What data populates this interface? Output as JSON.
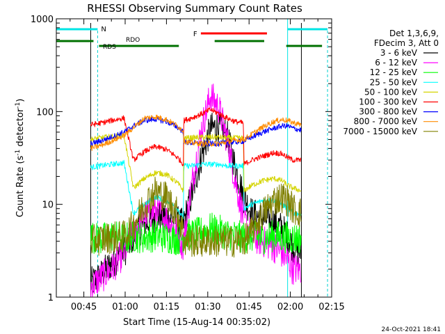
{
  "chart_data": {
    "type": "line",
    "title": "RHESSI Observing Summary Count Rates",
    "xlabel": "Start Time (15-Aug-14 00:35:02)",
    "ylabel": "Count Rate (s^-1 detector^-1)",
    "ylabel_parts": [
      "Count Rate (s",
      "-1",
      " detector",
      "-1",
      ")"
    ],
    "footer": "24-Oct-2021 18:41",
    "y_scale": "log",
    "ylim": [
      1,
      1000
    ],
    "xlim_minutes": [
      35.0,
      135.0
    ],
    "x_ticks": [
      {
        "minute": 45,
        "label": "00:45"
      },
      {
        "minute": 60,
        "label": "01:00"
      },
      {
        "minute": 75,
        "label": "01:15"
      },
      {
        "minute": 90,
        "label": "01:30"
      },
      {
        "minute": 105,
        "label": "01:45"
      },
      {
        "minute": 120,
        "label": "02:00"
      },
      {
        "minute": 135,
        "label": "02:15"
      }
    ],
    "y_ticks": [
      {
        "value": 1,
        "label": "1"
      },
      {
        "value": 10,
        "label": "10"
      },
      {
        "value": 100,
        "label": "100"
      },
      {
        "value": 1000,
        "label": "1000"
      }
    ],
    "legend_header": [
      "Det 1,3,6,9,",
      "FDecim 3, Att 0"
    ],
    "legend_position": "right",
    "data_gaps": [
      [
        35.0,
        47.5
      ],
      [
        124.0,
        135.0
      ]
    ],
    "time_points": [
      47.5,
      51,
      55,
      59.5,
      59.6,
      63,
      67,
      71,
      75,
      79,
      81.2,
      81.3,
      84,
      88,
      91,
      94,
      97,
      100,
      103,
      103.1,
      106,
      110,
      114,
      117,
      119,
      121,
      123.9
    ],
    "series": [
      {
        "name": "3 - 6 keV",
        "color": "#000000",
        "values": [
          1.4,
          1.7,
          2.3,
          3.1,
          3.1,
          4.5,
          6.0,
          7.5,
          7.5,
          6.5,
          6.0,
          6.5,
          12,
          35,
          65,
          70,
          55,
          25,
          12,
          12,
          8.0,
          7.0,
          6.5,
          5.5,
          4.5,
          3.5,
          3.0
        ]
      },
      {
        "name": "6 - 12 keV",
        "color": "#ff00ff",
        "values": [
          1.3,
          1.6,
          2.0,
          3.0,
          3.0,
          5.0,
          7.5,
          8.5,
          7.0,
          5.0,
          3.5,
          4.0,
          15,
          70,
          150,
          110,
          50,
          18,
          7.0,
          7.0,
          4.5,
          4.0,
          3.5,
          3.0,
          2.5,
          2.0,
          2.0
        ]
      },
      {
        "name": "12 - 25 keV",
        "color": "#00ff00",
        "values": [
          4.5,
          4.2,
          4.6,
          4.3,
          4.3,
          4.5,
          4.4,
          4.6,
          4.4,
          4.2,
          4.5,
          4.6,
          4.7,
          5.0,
          5.5,
          5.2,
          4.8,
          4.6,
          4.4,
          4.4,
          4.5,
          4.3,
          4.6,
          4.4,
          4.5,
          4.3,
          4.4
        ]
      },
      {
        "name": "25 - 50 keV",
        "color": "#00ffff",
        "values": [
          25,
          26,
          27,
          28,
          28,
          8.0,
          10,
          12,
          11,
          9.0,
          7.0,
          26,
          26,
          27,
          27,
          27,
          26,
          26,
          26,
          9.0,
          10,
          11,
          11,
          10,
          9.0,
          8.0,
          8.0
        ]
      },
      {
        "name": "50 - 100 keV",
        "color": "#d4d400",
        "values": [
          50,
          52,
          54,
          55,
          55,
          15,
          19,
          22,
          21,
          17,
          14,
          52,
          52,
          53,
          53,
          53,
          52,
          52,
          52,
          14,
          16,
          18,
          19,
          18,
          16,
          15,
          14
        ]
      },
      {
        "name": "100 - 300 keV",
        "color": "#ff0000",
        "values": [
          72,
          75,
          80,
          85,
          85,
          30,
          37,
          42,
          39,
          32,
          27,
          80,
          85,
          95,
          105,
          95,
          85,
          78,
          75,
          27,
          30,
          33,
          36,
          35,
          32,
          30,
          30
        ]
      },
      {
        "name": "300 - 800 keV",
        "color": "#0000ff",
        "values": [
          45,
          48,
          53,
          60,
          60,
          70,
          80,
          83,
          78,
          68,
          60,
          47,
          46,
          45,
          45,
          45,
          46,
          47,
          48,
          48,
          53,
          60,
          66,
          70,
          70,
          66,
          63
        ]
      },
      {
        "name": "800 - 7000 keV",
        "color": "#ff8c00",
        "values": [
          40,
          43,
          48,
          55,
          55,
          67,
          85,
          88,
          82,
          70,
          62,
          48,
          46,
          45,
          45,
          45,
          47,
          49,
          50,
          50,
          57,
          68,
          78,
          82,
          80,
          76,
          72
        ]
      },
      {
        "name": "7000 - 15000 keV",
        "color": "#808000",
        "values": [
          4.0,
          4.2,
          4.4,
          4.5,
          4.5,
          6.0,
          10,
          14,
          12,
          8.0,
          5.0,
          4.0,
          4.0,
          4.0,
          4.0,
          4.0,
          4.0,
          4.0,
          4.0,
          4.0,
          5.0,
          8.0,
          11,
          12,
          11,
          9.0,
          8.0
        ]
      }
    ],
    "annotations": {
      "n_label": "N",
      "f_label": "F",
      "rdo_label": "RDO",
      "rds_label": "RDS",
      "night_intervals": [
        [
          35.0,
          50.0
        ],
        [
          119.0,
          133.5
        ]
      ],
      "flare_intervals": [
        [
          87.5,
          111.5
        ]
      ],
      "rdo_intervals": [
        [
          35.0,
          48.5
        ],
        [
          50.5,
          79.5
        ],
        [
          92.5,
          110.5
        ],
        [
          118.5,
          131.5
        ]
      ],
      "rds_intervals": [
        [
          40.5,
          48.5
        ]
      ],
      "saa_markers": [
        50.0,
        133.5
      ]
    },
    "grid": false
  }
}
